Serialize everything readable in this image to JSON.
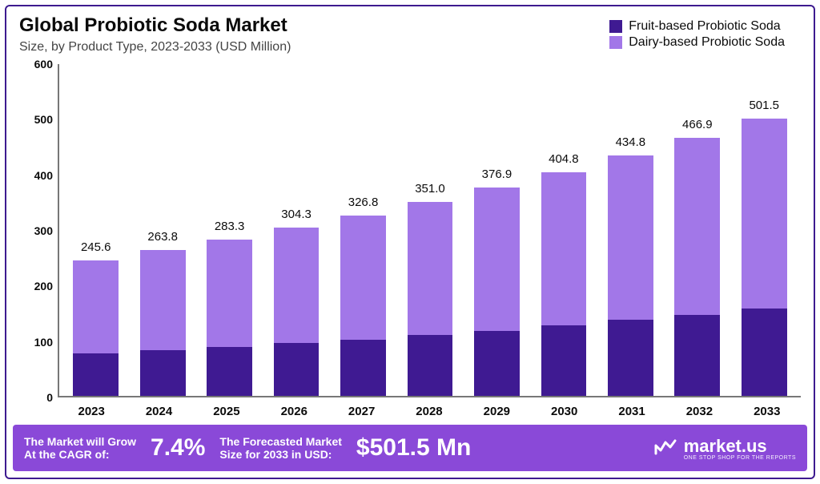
{
  "title": "Global Probiotic Soda Market",
  "subtitle": "Size, by Product Type, 2023-2033 (USD Million)",
  "chart": {
    "type": "stacked-bar",
    "background_color": "#ffffff",
    "axis_color": "#777777",
    "text_color": "#0b0b0b",
    "bar_width_ratio": 0.68,
    "ylim": [
      0,
      600
    ],
    "ytick_step": 100,
    "yticks": [
      0,
      100,
      200,
      300,
      400,
      500,
      600
    ],
    "categories": [
      "2023",
      "2024",
      "2025",
      "2026",
      "2027",
      "2028",
      "2029",
      "2030",
      "2031",
      "2032",
      "2033"
    ],
    "series": [
      {
        "name": "Fruit-based Probiotic Soda",
        "color": "#3f1a92",
        "values": [
          77,
          83,
          89,
          96,
          102,
          110,
          118,
          127,
          137,
          147,
          158
        ]
      },
      {
        "name": "Dairy-based Probiotic Soda",
        "color": "#a277e8",
        "values": [
          168.6,
          180.8,
          194.3,
          208.3,
          224.8,
          241.0,
          258.9,
          277.8,
          297.8,
          319.9,
          343.5
        ]
      }
    ],
    "totals": [
      "245.6",
      "263.8",
      "283.3",
      "304.3",
      "326.8",
      "351.0",
      "376.9",
      "404.8",
      "434.8",
      "466.9",
      "501.5"
    ],
    "title_fontsize": 24,
    "subtitle_fontsize": 16,
    "tick_fontsize": 15,
    "label_fontsize": 15
  },
  "legend": {
    "items": [
      {
        "label": "Fruit-based Probiotic Soda",
        "color": "#3f1a92"
      },
      {
        "label": "Dairy-based Probiotic Soda",
        "color": "#a277e8"
      }
    ]
  },
  "footer": {
    "bg_color": "#8a49d8",
    "cagr_label": "The Market will Grow\nAt the CAGR of:",
    "cagr_value": "7.4%",
    "forecast_label": "The Forecasted Market\nSize for 2033 in USD:",
    "forecast_value": "$501.5 Mn",
    "brand_name": "market.us",
    "brand_tagline": "ONE STOP SHOP FOR THE REPORTS"
  }
}
